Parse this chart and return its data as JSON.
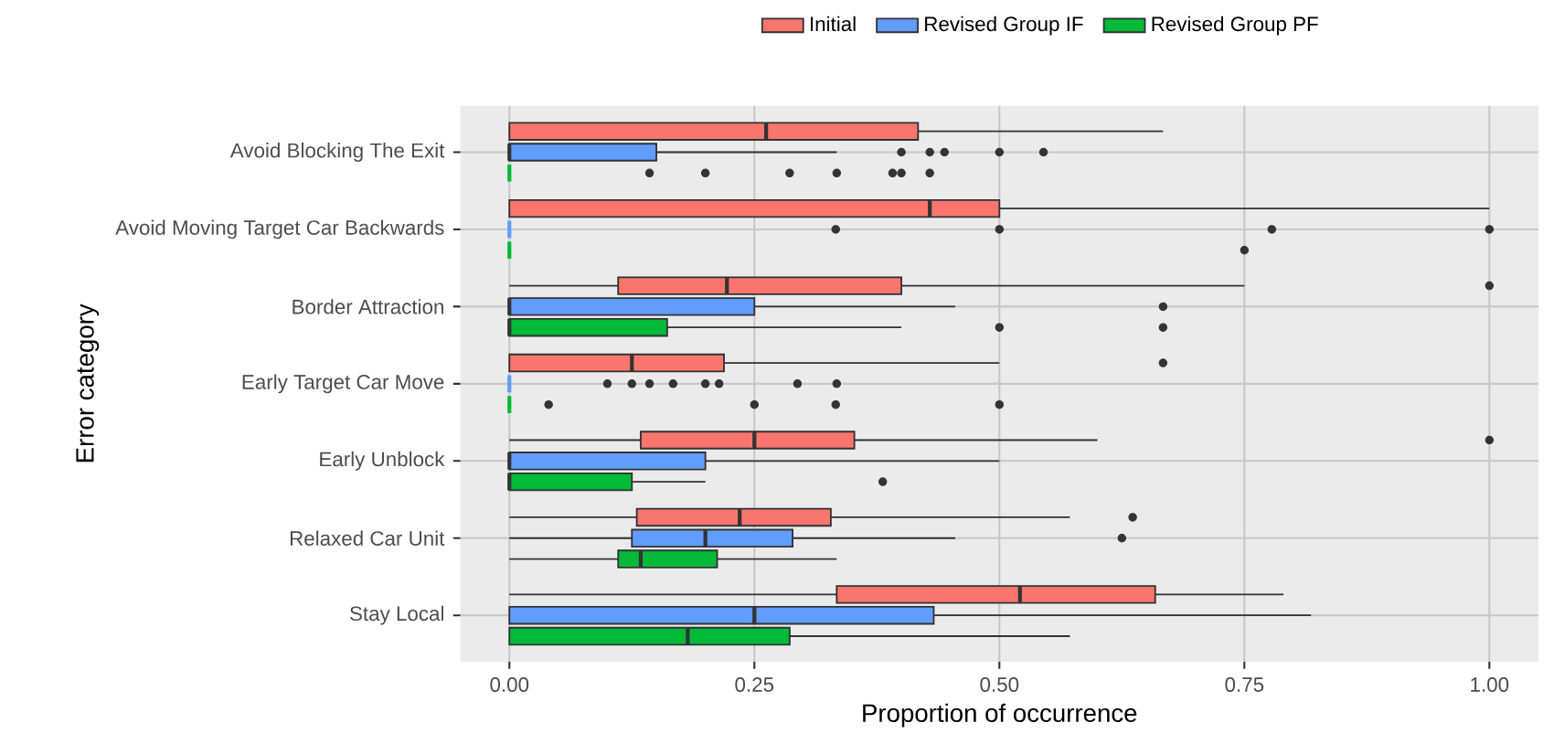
{
  "chart_data": {
    "type": "box",
    "orientation": "horizontal",
    "xlabel": "Proportion of occurrence",
    "ylabel": "Error category",
    "legend": "top",
    "grid": true,
    "categories": [
      "Avoid Blocking The Exit",
      "Avoid Moving Target Car Backwards",
      "Border Attraction",
      "Early Target Car Move",
      "Early Unblock",
      "Relaxed Car Unit",
      "Stay Local"
    ],
    "xlim": [
      -0.05,
      1.05
    ],
    "xticks": [
      {
        "value": 0,
        "label": "0.00"
      },
      {
        "value": 0.25,
        "label": "0.25"
      },
      {
        "value": 0.5,
        "label": "0.50"
      },
      {
        "value": 0.75,
        "label": "0.75"
      },
      {
        "value": 1,
        "label": "1.00"
      }
    ],
    "series": [
      {
        "name": "Initial",
        "color": "#f8766d",
        "boxes": [
          {
            "low": 0,
            "q1": 0,
            "median": 0.262,
            "q3": 0.417,
            "high": 0.667
          },
          {
            "low": 0,
            "q1": 0,
            "median": 0.429,
            "q3": 0.5,
            "high": 1.0
          },
          {
            "low": 0,
            "q1": 0.111,
            "median": 0.222,
            "q3": 0.4,
            "high": 0.75,
            "outliers": [
              1.0
            ]
          },
          {
            "low": 0,
            "q1": 0,
            "median": 0.125,
            "q3": 0.219,
            "high": 0.5,
            "outliers": [
              0.667
            ]
          },
          {
            "low": 0,
            "q1": 0.134,
            "median": 0.25,
            "q3": 0.352,
            "high": 0.6,
            "outliers": [
              1.0
            ]
          },
          {
            "low": 0,
            "q1": 0.13,
            "median": 0.235,
            "q3": 0.328,
            "high": 0.572,
            "outliers": [
              0.636
            ]
          },
          {
            "low": 0,
            "q1": 0.334,
            "median": 0.521,
            "q3": 0.659,
            "high": 0.79
          }
        ]
      },
      {
        "name": "Revised Group IF",
        "color": "#619cff",
        "boxes": [
          {
            "low": 0,
            "q1": 0,
            "median": 0,
            "q3": 0.15,
            "high": 0.334,
            "outliers": [
              0.4,
              0.429,
              0.444,
              0.5,
              0.545
            ]
          },
          {
            "low": 0,
            "q1": 0,
            "median": 0,
            "q3": 0,
            "high": 0,
            "outliers": [
              0.333,
              0.5,
              0.778,
              1.0
            ]
          },
          {
            "low": 0,
            "q1": 0,
            "median": 0,
            "q3": 0.25,
            "high": 0.455,
            "outliers": [
              0.667
            ]
          },
          {
            "low": 0,
            "q1": 0,
            "median": 0,
            "q3": 0,
            "high": 0,
            "outliers": [
              0.1,
              0.125,
              0.143,
              0.167,
              0.2,
              0.214,
              0.294,
              0.334
            ]
          },
          {
            "low": 0,
            "q1": 0,
            "median": 0,
            "q3": 0.2,
            "high": 0.5
          },
          {
            "low": 0,
            "q1": 0.125,
            "median": 0.2,
            "q3": 0.289,
            "high": 0.455,
            "outliers": [
              0.625
            ]
          },
          {
            "low": 0,
            "q1": 0,
            "median": 0.25,
            "q3": 0.433,
            "high": 0.818
          }
        ]
      },
      {
        "name": "Revised Group PF",
        "color": "#00ba38",
        "boxes": [
          {
            "low": 0,
            "q1": 0,
            "median": 0,
            "q3": 0,
            "high": 0,
            "outliers": [
              0.143,
              0.2,
              0.286,
              0.334,
              0.391,
              0.4,
              0.429
            ]
          },
          {
            "low": 0,
            "q1": 0,
            "median": 0,
            "q3": 0,
            "high": 0,
            "outliers": [
              0.75
            ]
          },
          {
            "low": 0,
            "q1": 0,
            "median": 0,
            "q3": 0.161,
            "high": 0.4,
            "outliers": [
              0.5,
              0.667
            ]
          },
          {
            "low": 0,
            "q1": 0,
            "median": 0,
            "q3": 0,
            "high": 0,
            "outliers": [
              0.04,
              0.25,
              0.333,
              0.5
            ]
          },
          {
            "low": 0,
            "q1": 0,
            "median": 0,
            "q3": 0.125,
            "high": 0.2,
            "outliers": [
              0.381
            ]
          },
          {
            "low": 0,
            "q1": 0.111,
            "median": 0.134,
            "q3": 0.212,
            "high": 0.334
          },
          {
            "low": 0,
            "q1": 0,
            "median": 0.182,
            "q3": 0.286,
            "high": 0.572
          }
        ]
      }
    ]
  }
}
